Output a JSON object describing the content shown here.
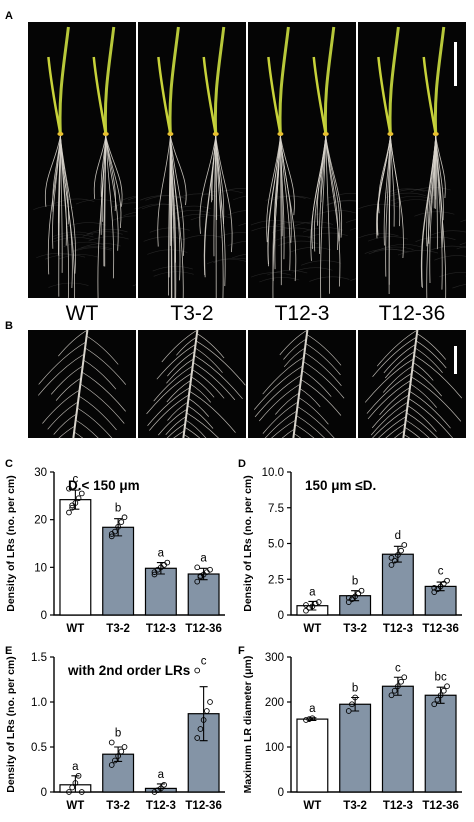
{
  "panels": {
    "A": {
      "letter": "A"
    },
    "B": {
      "letter": "B"
    },
    "C": {
      "letter": "C"
    },
    "D": {
      "letter": "D"
    },
    "E": {
      "letter": "E"
    },
    "F": {
      "letter": "F"
    }
  },
  "genotypes": [
    "WT",
    "T3-2",
    "T12-3",
    "T12-36"
  ],
  "colors": {
    "wt_bar": "#ffffff",
    "transgenic_bar": "#8494a6",
    "photo_bg": "#050505",
    "root": "#d8d4cc",
    "shoot": "#b8c83a"
  },
  "chart_data": [
    {
      "id": "C",
      "type": "bar",
      "categories": [
        "WT",
        "T3-2",
        "T12-3",
        "T12-36"
      ],
      "values": [
        24.2,
        18.4,
        9.8,
        8.6
      ],
      "errors": [
        2.0,
        1.8,
        1.2,
        1.2
      ],
      "letters": [
        "c",
        "b",
        "a",
        "a"
      ],
      "points": [
        [
          21.5,
          22.5,
          23.5,
          24.5,
          25.5,
          26.5,
          23.0
        ],
        [
          16.5,
          17.5,
          18.5,
          19.5,
          20.5,
          17.0
        ],
        [
          8.5,
          9.5,
          10.0,
          10.5,
          11.0,
          9.0
        ],
        [
          7.0,
          8.0,
          8.5,
          9.0,
          9.5,
          10.0,
          8.2
        ]
      ],
      "annotation": "D.< 150 μm",
      "ylabel": "Density of LRs (no. per cm)",
      "ylim": [
        0,
        30
      ],
      "yticks": [
        0,
        10,
        20,
        30
      ],
      "ytick_labels": [
        "0",
        "10",
        "20",
        "30"
      ]
    },
    {
      "id": "D",
      "type": "bar",
      "categories": [
        "WT",
        "T3-2",
        "T12-3",
        "T12-36"
      ],
      "values": [
        0.65,
        1.35,
        4.25,
        2.0
      ],
      "errors": [
        0.3,
        0.35,
        0.55,
        0.3
      ],
      "letters": [
        "a",
        "b",
        "d",
        "c"
      ],
      "points": [
        [
          0.3,
          0.5,
          0.6,
          0.8,
          0.9,
          0.7
        ],
        [
          0.9,
          1.1,
          1.3,
          1.5,
          1.7,
          1.2
        ],
        [
          3.5,
          3.8,
          4.2,
          4.5,
          4.9,
          4.0
        ],
        [
          1.6,
          1.8,
          2.0,
          2.2,
          2.4,
          1.9
        ]
      ],
      "annotation": "150 μm ≤D.",
      "ylabel": "Density of LRs (no. per cm)",
      "ylim": [
        0,
        10
      ],
      "yticks": [
        0,
        2.5,
        5,
        7.5,
        10
      ],
      "ytick_labels": [
        "0",
        "2.5",
        "5.0",
        "7.5",
        "10.0"
      ]
    },
    {
      "id": "E",
      "type": "bar",
      "categories": [
        "WT",
        "T3-2",
        "T12-3",
        "T12-36"
      ],
      "values": [
        0.08,
        0.42,
        0.04,
        0.87
      ],
      "errors": [
        0.1,
        0.08,
        0.05,
        0.3
      ],
      "letters": [
        "a",
        "b",
        "a",
        "c"
      ],
      "points": [
        [
          0.0,
          0.05,
          0.1,
          0.18,
          0.0
        ],
        [
          0.3,
          0.35,
          0.4,
          0.45,
          0.5,
          0.55
        ],
        [
          0.0,
          0.02,
          0.04,
          0.08
        ],
        [
          0.6,
          0.7,
          0.8,
          0.9,
          1.0,
          1.35
        ]
      ],
      "annotation": "with 2nd order LRs",
      "ylabel": "Density of LRs (no. per cm)",
      "ylim": [
        0,
        1.5
      ],
      "yticks": [
        0,
        0.5,
        1.0,
        1.5
      ],
      "ytick_labels": [
        "0",
        "0.5",
        "1.0",
        "1.5"
      ]
    },
    {
      "id": "F",
      "type": "bar",
      "categories": [
        "WT",
        "T3-2",
        "T12-3",
        "T12-36"
      ],
      "values": [
        162,
        195,
        235,
        215
      ],
      "errors": [
        3,
        15,
        20,
        18
      ],
      "letters": [
        "a",
        "b",
        "c",
        "bc"
      ],
      "points": [
        [
          160,
          162,
          164
        ],
        [
          180,
          195,
          210
        ],
        [
          215,
          225,
          235,
          245,
          255
        ],
        [
          195,
          205,
          215,
          225,
          235
        ]
      ],
      "annotation": "",
      "ylabel": "Maximum LR diameter (μm)",
      "ylim": [
        0,
        300
      ],
      "yticks": [
        0,
        100,
        200,
        300
      ],
      "ytick_labels": [
        "0",
        "100",
        "200",
        "300"
      ]
    }
  ]
}
